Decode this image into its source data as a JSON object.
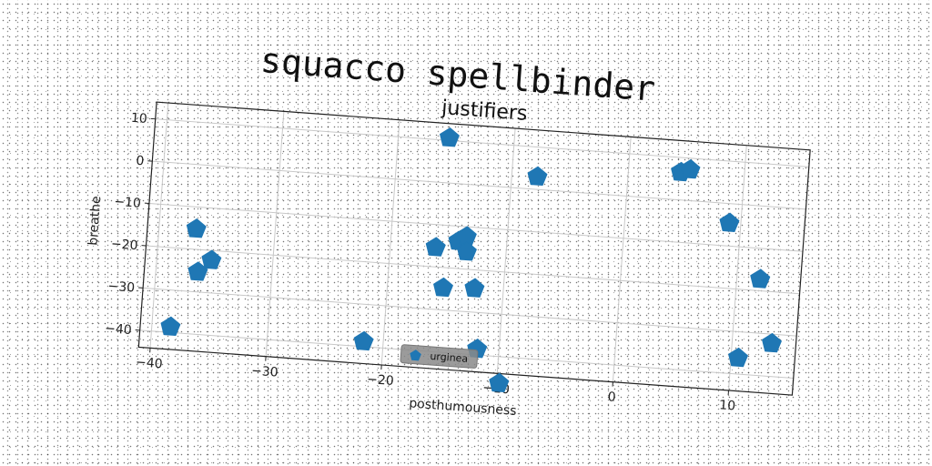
{
  "suptitle": "squacco spellbinder",
  "chart_data": {
    "type": "scatter",
    "title": "justifiers",
    "xlabel": "posthumousness",
    "ylabel": "breathe",
    "xlim": [
      -41,
      15.5
    ],
    "ylim": [
      -44,
      14
    ],
    "xticks": [
      -40,
      -30,
      -20,
      -10,
      0,
      10
    ],
    "yticks": [
      10,
      0,
      -10,
      -20,
      -30,
      -40
    ],
    "grid": true,
    "legend_position": "lower center",
    "marker": "pentagon",
    "color": "#1f77b4",
    "series": [
      {
        "name": "urginea",
        "points": [
          [
            -15.6,
            10.6
          ],
          [
            -7.8,
            3.0
          ],
          [
            4.5,
            6.5
          ],
          [
            5.3,
            7.3
          ],
          [
            9.0,
            -4.6
          ],
          [
            -36.8,
            -15.2
          ],
          [
            -16.1,
            -15.4
          ],
          [
            -14.2,
            -13.6
          ],
          [
            -13.5,
            -12.3
          ],
          [
            -13.4,
            -15.9
          ],
          [
            -35.3,
            -22.3
          ],
          [
            -36.4,
            -25.3
          ],
          [
            -15.2,
            -24.8
          ],
          [
            -12.5,
            -24.4
          ],
          [
            12.0,
            -17.3
          ],
          [
            -38.4,
            -38.7
          ],
          [
            -21.7,
            -38.8
          ],
          [
            -11.9,
            -38.6
          ],
          [
            13.4,
            -32.2
          ],
          [
            10.6,
            -36.2
          ],
          [
            -9.8,
            -46.3
          ]
        ]
      }
    ]
  }
}
